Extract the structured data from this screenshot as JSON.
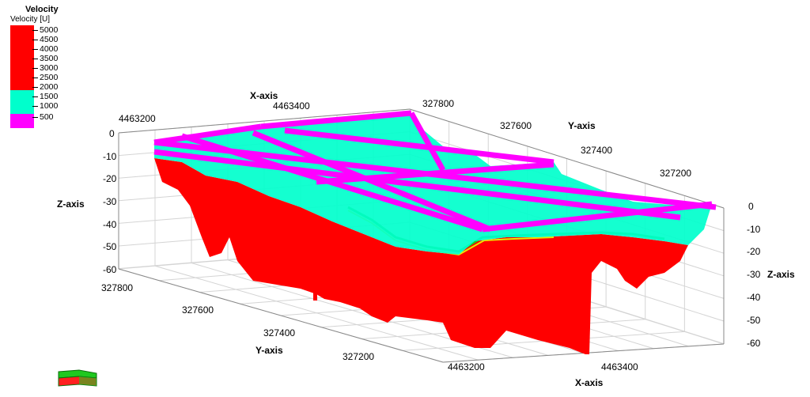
{
  "legend": {
    "title": "Velocity",
    "subtitle": "Velocity [U]",
    "ticks": [
      "5000",
      "4500",
      "4000",
      "3500",
      "3000",
      "2500",
      "2000",
      "1500",
      "1000",
      "500"
    ],
    "color_bands": [
      {
        "from": 2500,
        "to": 5000,
        "color": "#ff0000"
      },
      {
        "from": 1000,
        "to": 2000,
        "color": "#00ffcc"
      },
      {
        "from": 500,
        "to": 1000,
        "color": "#ff00ff"
      }
    ]
  },
  "chart_data": {
    "type": "3d-surface",
    "title": "Velocity",
    "colorbar_label": "Velocity [U]",
    "x_axis": {
      "label": "X-axis",
      "ticks_top": [
        "4463200",
        "4463400"
      ],
      "ticks_bottom": [
        "4463200",
        "4463400"
      ]
    },
    "y_axis": {
      "label": "Y-axis",
      "ticks_top": [
        "327800",
        "327600",
        "327400",
        "327200"
      ],
      "ticks_bottom": [
        "327800",
        "327600",
        "327400",
        "327200"
      ]
    },
    "z_axis": {
      "label": "Z-axis",
      "range": [
        -60,
        0
      ],
      "ticks": [
        "0",
        "-10",
        "-20",
        "-30",
        "-40",
        "-50",
        "-60"
      ]
    },
    "layers": [
      {
        "velocity_range": [
          500,
          1000
        ],
        "color": "#ff00ff"
      },
      {
        "velocity_range": [
          1000,
          2000
        ],
        "color": "#00ffcc"
      },
      {
        "velocity_range": [
          2500,
          5000
        ],
        "color": "#ff0000"
      }
    ],
    "grid": true
  },
  "colors": {
    "red": "#ff0000",
    "cyan": "#00ffcc",
    "magenta": "#ff00ff",
    "green": "#1fc81f",
    "yellow": "#e8e800",
    "grid": "#d4d4d4"
  }
}
